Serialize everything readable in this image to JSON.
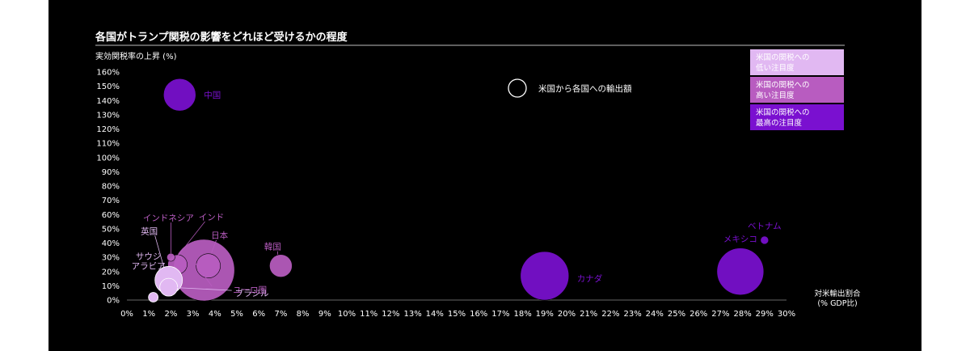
{
  "chart_data": {
    "type": "scatter",
    "title": "各国がトランプ関税の影響をどれほど受けるかの程度",
    "ylabel": "実効関税率の上昇 (%)",
    "xlabel_line1": "対米輸出割合",
    "xlabel_line2": "(% GDP比)",
    "size_legend": "米国から各国への輸出額",
    "x_ticks": [
      "0%",
      "1%",
      "2%",
      "3%",
      "4%",
      "5%",
      "6%",
      "7%",
      "8%",
      "9%",
      "10%",
      "11%",
      "12%",
      "13%",
      "14%",
      "15%",
      "16%",
      "17%",
      "18%",
      "19%",
      "20%",
      "21%",
      "22%",
      "23%",
      "24%",
      "25%",
      "26%",
      "27%",
      "28%",
      "29%",
      "30%"
    ],
    "y_ticks": [
      "0%",
      "10%",
      "20%",
      "30%",
      "40%",
      "50%",
      "60%",
      "70%",
      "80%",
      "90%",
      "100%",
      "110%",
      "120%",
      "130%",
      "140%",
      "150%",
      "160%"
    ],
    "xlim": [
      0,
      30
    ],
    "ylim": [
      0,
      160
    ],
    "categories": [
      {
        "id": "low",
        "line1": "米国の関税への",
        "line2": "低い注目度",
        "color": "#e1b8f2"
      },
      {
        "id": "high",
        "line1": "米国の関税への",
        "line2": "高い注目度",
        "color": "#b85cc0"
      },
      {
        "id": "highest",
        "line1": "米国の関税への",
        "line2": "最高の注目度",
        "color": "#7a10d0"
      }
    ],
    "points": [
      {
        "name": "中国",
        "x": 2.4,
        "y": 144,
        "r": 20,
        "cat": "highest"
      },
      {
        "name": "カナダ",
        "x": 19.0,
        "y": 17,
        "r": 30,
        "cat": "highest"
      },
      {
        "name": "メキシコ",
        "x": 27.9,
        "y": 20,
        "r": 29,
        "cat": "highest"
      },
      {
        "name": "ベトナム",
        "x": 29.0,
        "y": 42,
        "r": 5,
        "cat": "highest"
      },
      {
        "name": "ユーロ圏",
        "x": 3.5,
        "y": 21,
        "r": 38,
        "cat": "high"
      },
      {
        "name": "日本",
        "x": 3.7,
        "y": 24,
        "r": 15,
        "cat": "high"
      },
      {
        "name": "韓国",
        "x": 7.0,
        "y": 24,
        "r": 14,
        "cat": "high"
      },
      {
        "name": "インド",
        "x": 2.3,
        "y": 25,
        "r": 12,
        "cat": "high"
      },
      {
        "name": "インドネシア",
        "x": 2.0,
        "y": 30,
        "r": 5,
        "cat": "high"
      },
      {
        "name": "英国",
        "x": 1.9,
        "y": 14,
        "r": 17,
        "cat": "low"
      },
      {
        "name": "ブラジル",
        "x": 1.9,
        "y": 9,
        "r": 11,
        "cat": "low"
      },
      {
        "name": "サウジアラビア",
        "x": 1.2,
        "y": 2,
        "r": 6,
        "cat": "low"
      }
    ]
  }
}
